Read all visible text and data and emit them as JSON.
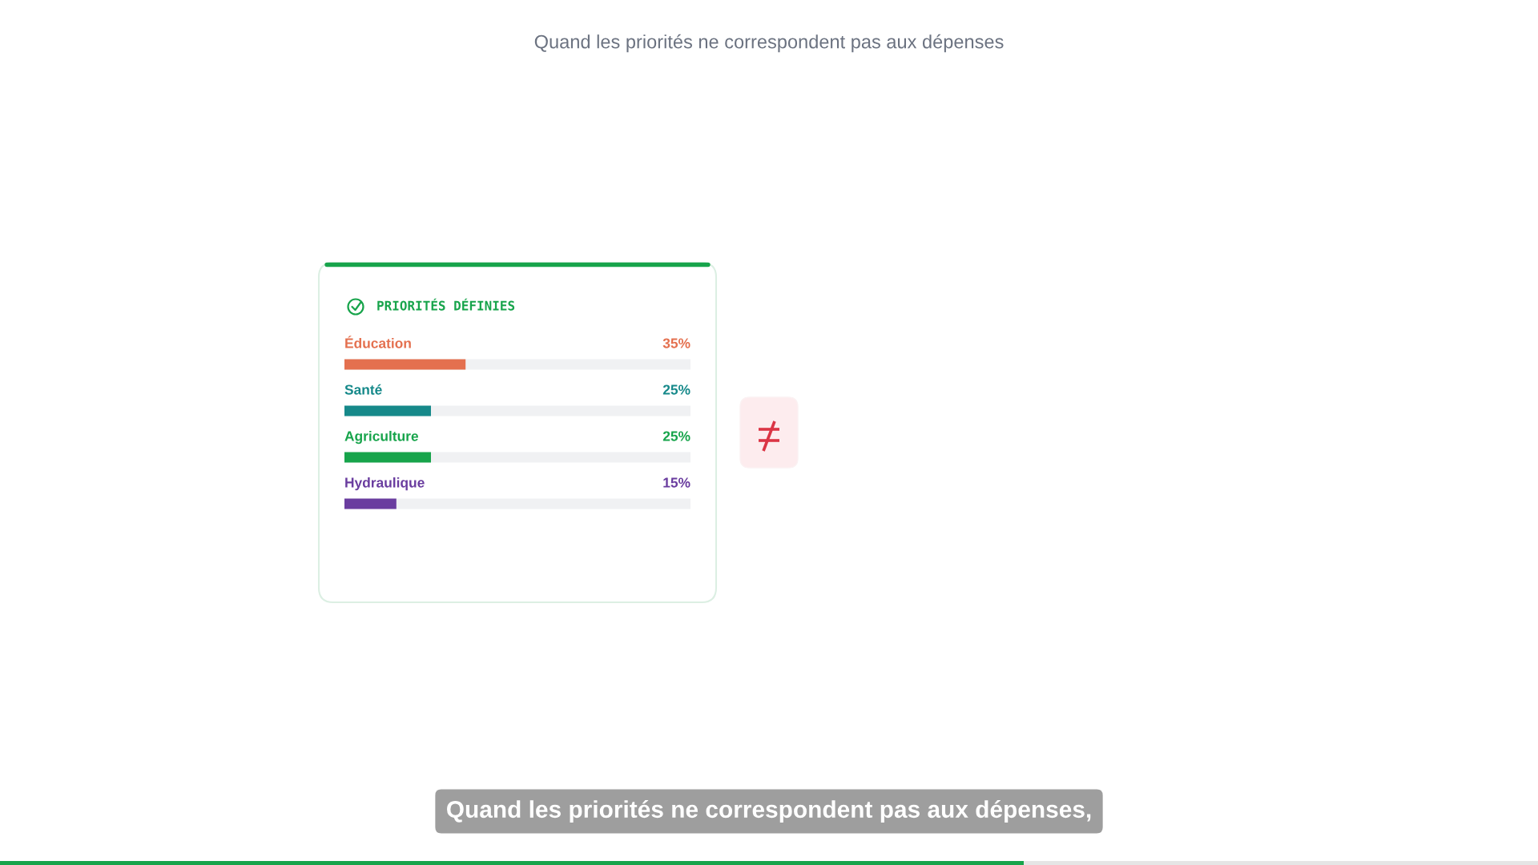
{
  "chart_data": {
    "type": "bar",
    "orientation": "horizontal",
    "title": "Quand les priorités ne correspondent pas aux dépenses",
    "subtitle": "PRIORITÉS DÉFINIES",
    "categories": [
      "Éducation",
      "Santé",
      "Agriculture",
      "Hydraulique"
    ],
    "values": [
      35,
      25,
      25,
      15
    ],
    "colors": [
      "#e4704f",
      "#16898a",
      "#17a44b",
      "#6a3d9f"
    ],
    "value_labels": [
      "35%",
      "25%",
      "25%",
      "15%"
    ],
    "xlim": [
      0,
      100
    ],
    "tick_labels": "y",
    "annotations": [
      "Quand les priorités ne correspondent pas aux dépenses,"
    ]
  }
}
